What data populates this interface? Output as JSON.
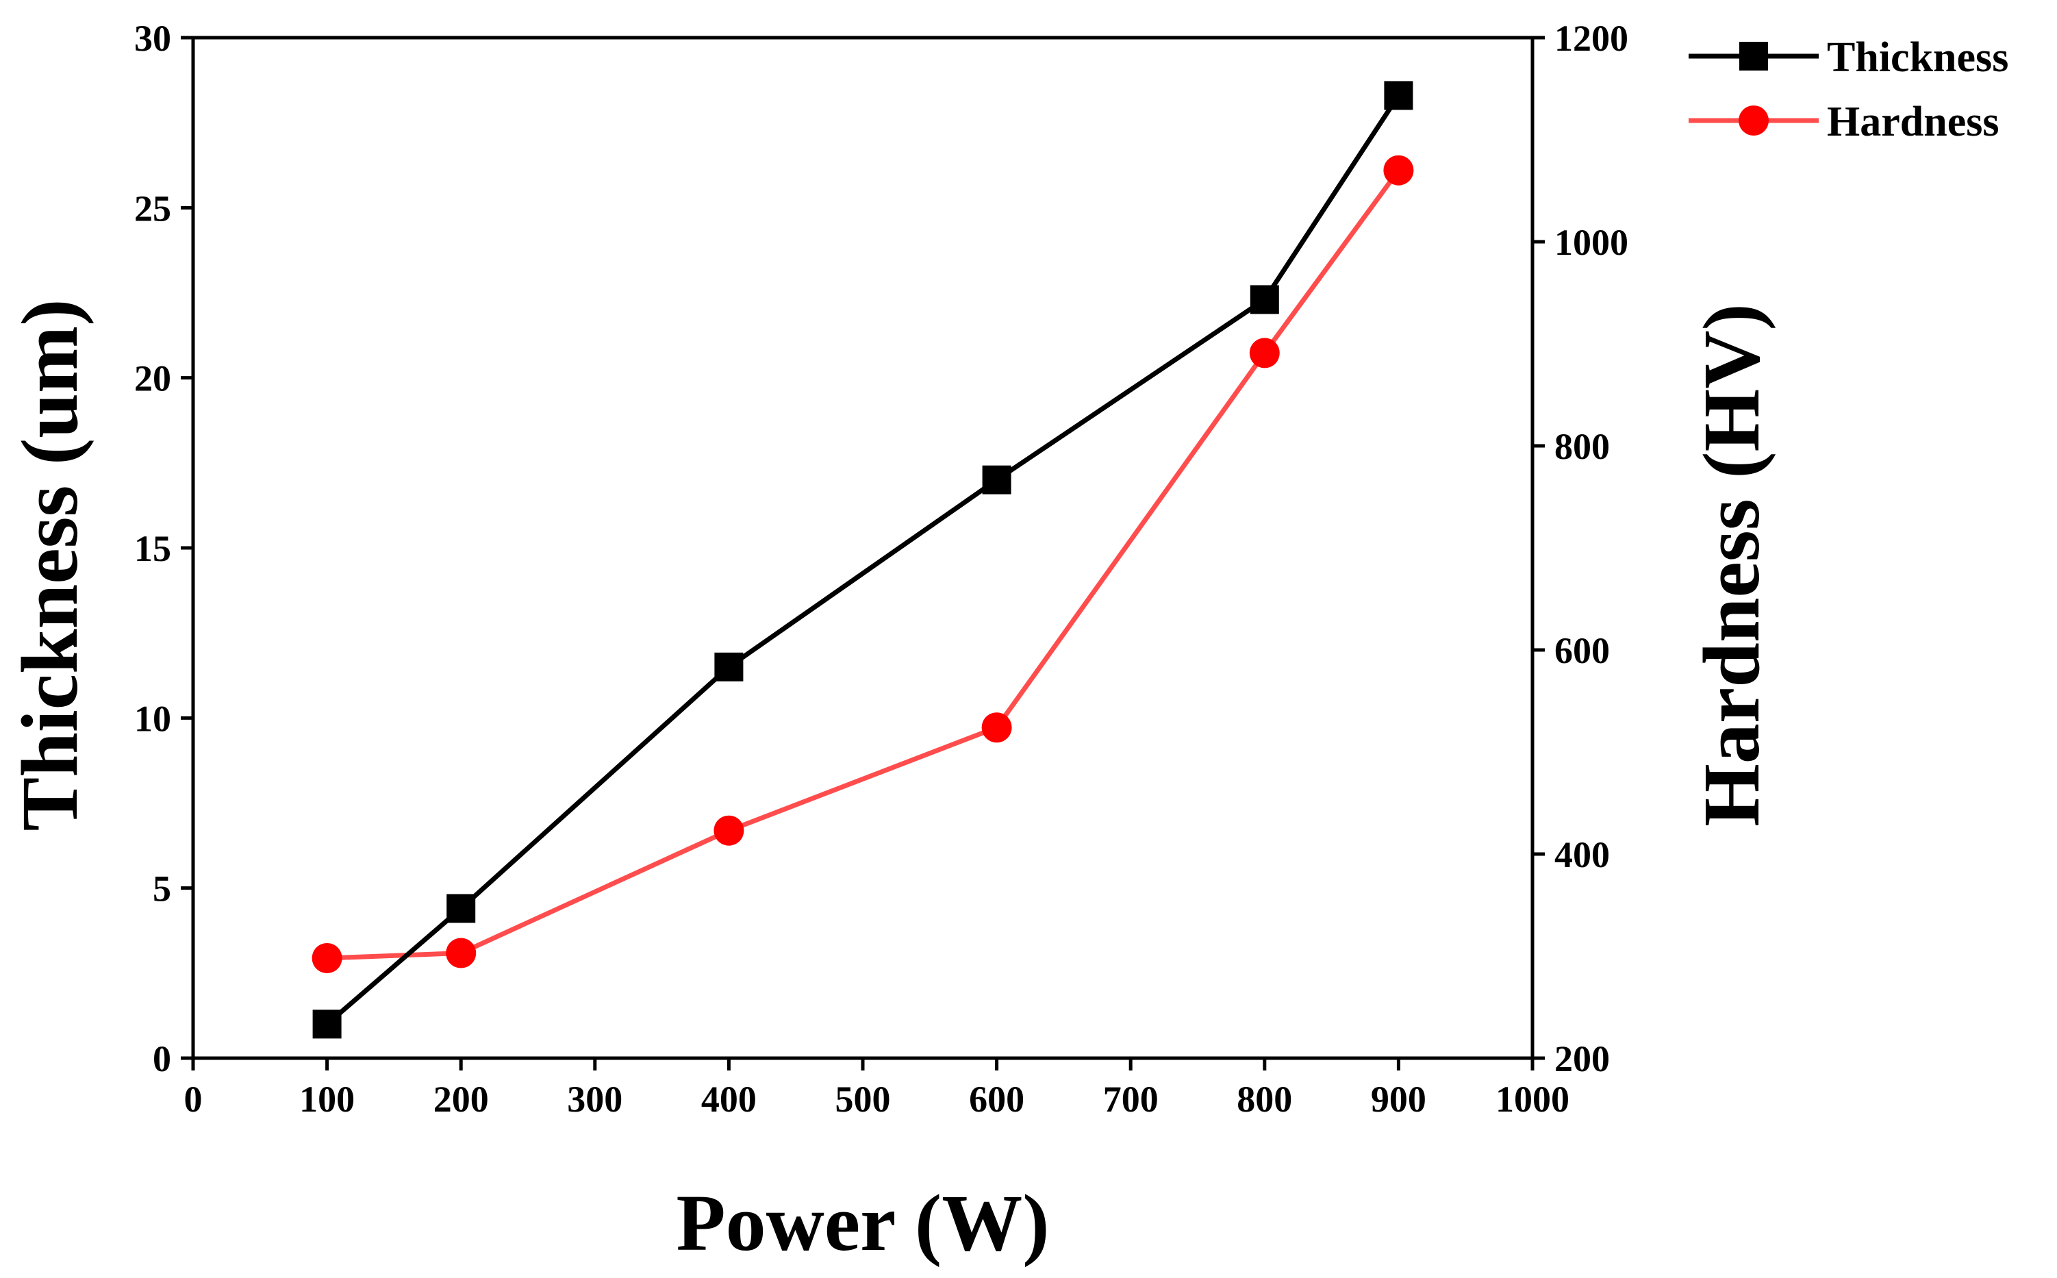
{
  "chart_data": {
    "type": "line",
    "title": "",
    "xlabel": "Power (W)",
    "ylabel": "Thickness (um)",
    "y2label": "Hardness (HV)",
    "xlim": [
      0,
      1000
    ],
    "ylim": [
      0,
      30
    ],
    "y2lim": [
      200,
      1200
    ],
    "xticks": [
      0,
      100,
      200,
      300,
      400,
      500,
      600,
      700,
      800,
      900,
      1000
    ],
    "yticks": [
      0,
      5,
      10,
      15,
      20,
      25,
      30
    ],
    "y2ticks": [
      200,
      400,
      600,
      800,
      1000,
      1200
    ],
    "grid": false,
    "legend_position": "top-right",
    "series": [
      {
        "name": "Thickness",
        "axis": "left",
        "color": "#000000",
        "marker": "square",
        "x": [
          100,
          200,
          400,
          600,
          800,
          900
        ],
        "values": [
          1.0,
          4.4,
          11.5,
          17.0,
          22.3,
          28.3
        ]
      },
      {
        "name": "Hardness",
        "axis": "right",
        "color": "#ff0000",
        "line_color": "#ff4d4d",
        "marker": "circle",
        "x": [
          100,
          200,
          400,
          600,
          800,
          900
        ],
        "values": [
          298,
          303,
          423,
          524,
          891,
          1070
        ]
      }
    ]
  }
}
